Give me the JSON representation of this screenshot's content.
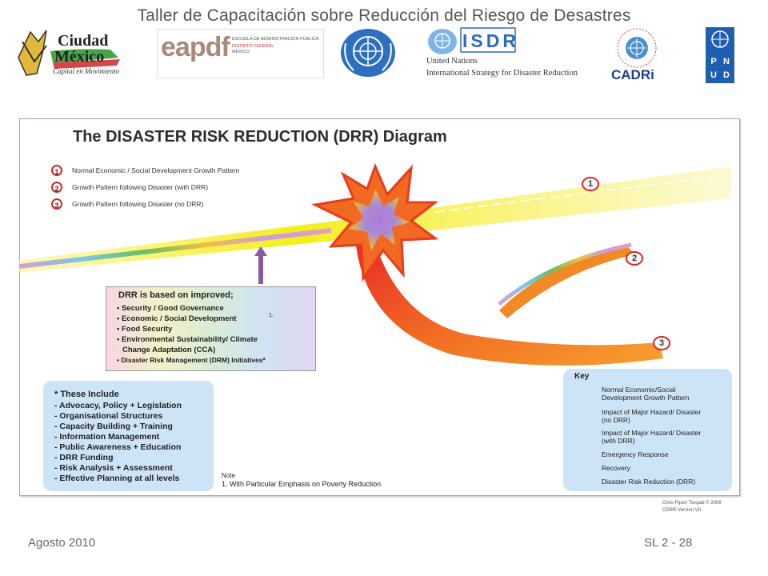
{
  "header": {
    "title": "Taller de Capacitación sobre Reducción del Riesgo de Desastres"
  },
  "logos": {
    "cdmx": {
      "name_line1": "Ciudad",
      "name_line2": "México",
      "tagline": "Capital en Movimiento"
    },
    "eapdf": {
      "word": "eapdf",
      "line1": "ESCUELA DE ADMINISTRACIÓN PÚBLICA",
      "line2": "DISTRITO FEDERAL",
      "line3": "MÉXICO"
    },
    "isdr": {
      "word": "ISDR",
      "line1": "United Nations",
      "line2": "International Strategy for Disaster Reduction"
    },
    "cadri": {
      "word": "CADRi",
      "ring_text": "CAPACITY FOR DISASTER REDUCTION INITIATIVE"
    },
    "pnud": {
      "letters": [
        "P",
        "N",
        "U",
        "D"
      ]
    }
  },
  "diagram": {
    "title": "The DISASTER RISK REDUCTION (DRR) Diagram",
    "legend": [
      {
        "num": "1",
        "text": "Normal Economic / Social Development Growth Pattern"
      },
      {
        "num": "2",
        "text": "Growth Pattern following Disaster (with DRR)"
      },
      {
        "num": "3",
        "text": "Growth Pattern following Disaster (no DRR)"
      }
    ],
    "curve_labels": [
      "1",
      "2",
      "3"
    ],
    "drr_box": {
      "title": "DRR is based on improved;",
      "items": [
        "• Security / Good Governance",
        "• Economic / Social Development",
        "• Food Security",
        "• Environmental Sustainability/ Climate",
        "Change Adaptation (CCA)",
        "• Disaster Risk Management (DRM) Initiatives*"
      ],
      "superscript": "1."
    },
    "include_box": {
      "title": "* These Include",
      "items": [
        "- Advocacy, Policy + Legislation",
        "- Organisational Structures",
        "- Capacity Building + Training",
        "- Information Management",
        "- Public Awareness + Education",
        "- DRR Funding",
        "- Risk Analysis + Assessment",
        "- Effective Planning at all levels"
      ]
    },
    "note": {
      "label": "Note",
      "text": "1. With Particular Emphasis on Poverty Reduction"
    },
    "key": {
      "title": "Key",
      "items": [
        {
          "text1": "Normal Economic/Social",
          "text2": "Development Growth Pattern",
          "swatch": "#f4ee1a"
        },
        {
          "text1": "Impact of Major Hazard/ Disaster",
          "text2": "(no DRR)",
          "swatch": "#e8402a"
        },
        {
          "text1": "Impact of Major Hazard/ Disaster",
          "text2": "(with DRR)",
          "swatch": "#9b7fd1"
        },
        {
          "text1": "Emergency Response",
          "text2": "",
          "swatch": "#d8232a"
        },
        {
          "text1": "Recovery",
          "text2": "",
          "swatch": "#f0901e"
        },
        {
          "text1": "Disaster Risk Reduction (DRR)",
          "text2": "",
          "swatch": "#a9cfe0"
        }
      ]
    },
    "credit": {
      "line1": "Chris Piper/ Torqaid © 2008",
      "line2": "CDRR Version VII"
    }
  },
  "footer": {
    "left": "Agosto 2010",
    "right": "SL 2 - 28"
  },
  "colors": {
    "accent_red": "#d22222",
    "box_blue": "#cde4f6",
    "arrow_purple": "#8a5aa0"
  }
}
